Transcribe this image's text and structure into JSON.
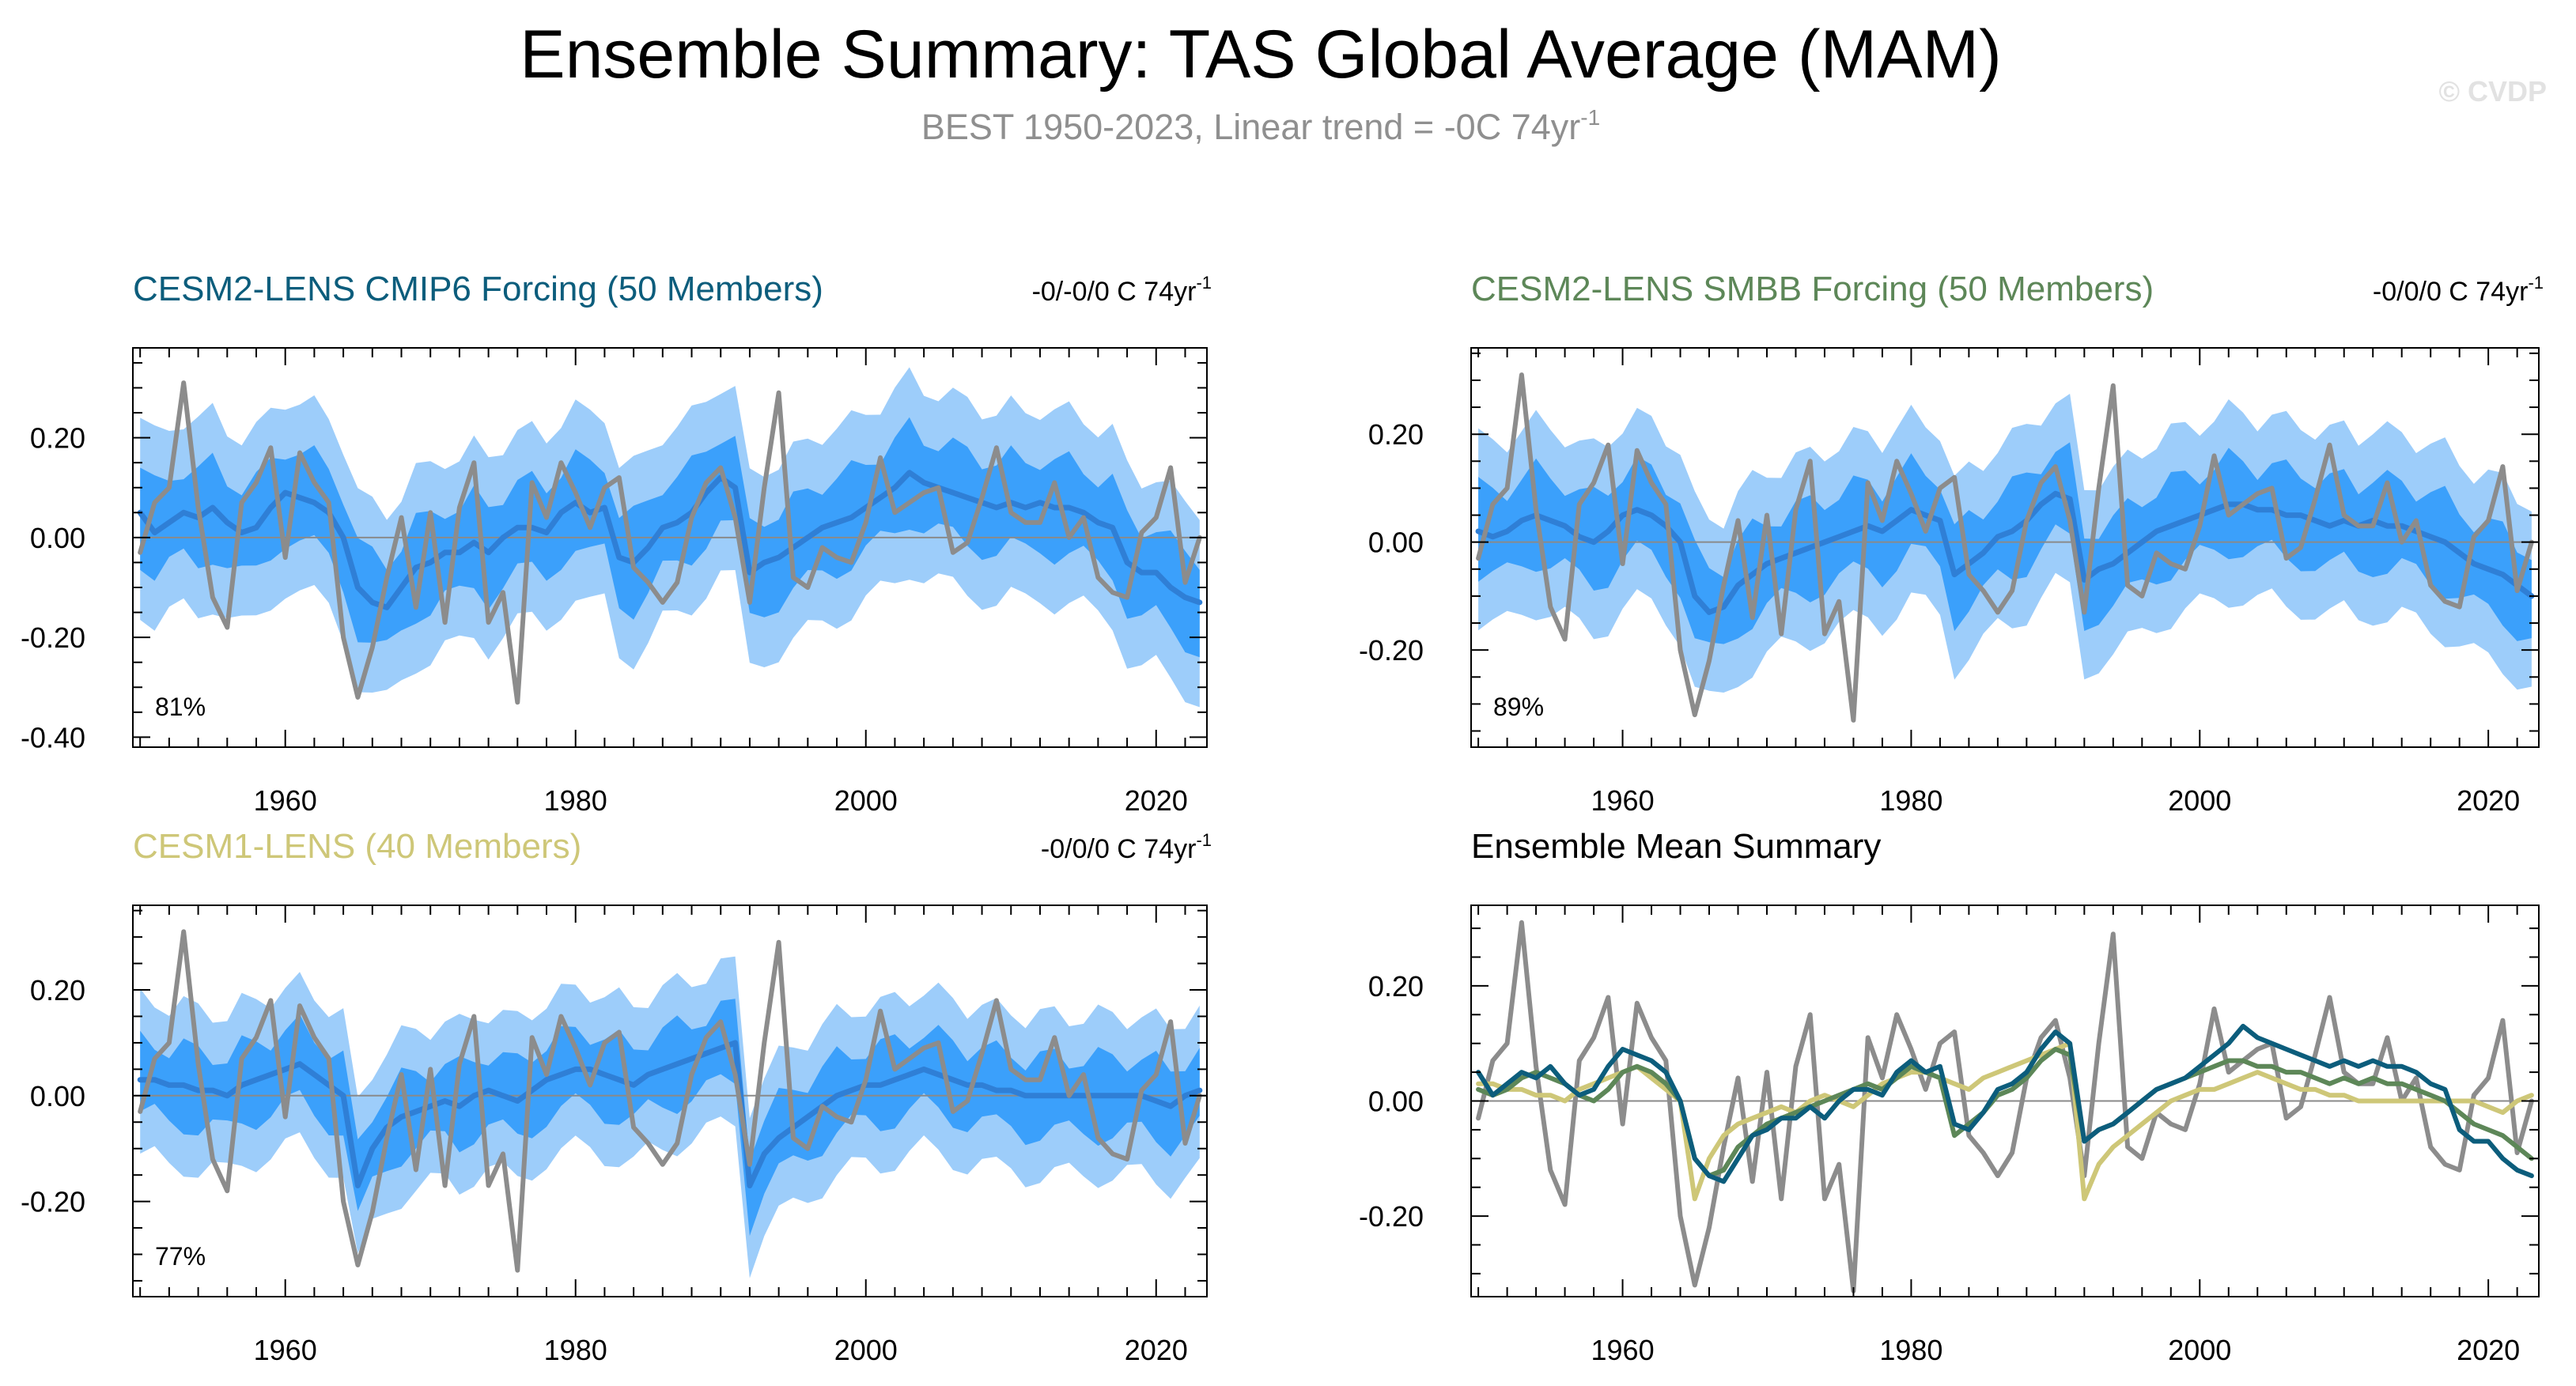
{
  "title": "Ensemble Summary: TAS Global Average (MAM)",
  "subtitle": {
    "text": "BEST 1950-2023, Linear trend = -0C 74yr",
    "sup": "-1"
  },
  "copyright": "© CVDP",
  "colors": {
    "band_outer": "#9dcdfa",
    "band_inner": "#3ba0fb",
    "ens_mean": "#2f7fd6",
    "obs": "#8c8c8c",
    "cesm2_cmip6": "#0c5d7c",
    "cesm2_smbb": "#5d8758",
    "cesm1": "#cec778",
    "zero_line": "#8a8a8a"
  },
  "panels": [
    {
      "id": "cesm2-cmip6",
      "title": "CESM2-LENS CMIP6 Forcing (50 Members)",
      "title_color": "#0c5d7c",
      "trend": "-0/-0/0 C 74yr",
      "trend_sup": "-1",
      "pct": "81%"
    },
    {
      "id": "cesm2-smbb",
      "title": "CESM2-LENS SMBB Forcing (50 Members)",
      "title_color": "#5d8758",
      "trend": "-0/0/0 C 74yr",
      "trend_sup": "-1",
      "pct": "89%"
    },
    {
      "id": "cesm1",
      "title": "CESM1-LENS (40 Members)",
      "title_color": "#cec778",
      "trend": "-0/0/0 C 74yr",
      "trend_sup": "-1",
      "pct": "77%"
    },
    {
      "id": "summary",
      "title": "Ensemble Mean Summary",
      "title_color": "#000000"
    }
  ],
  "chart_data": [
    {
      "type": "line",
      "panel": "cesm2-cmip6",
      "title": "CESM2-LENS CMIP6 Forcing (50 Members)",
      "x_start": 1950,
      "xlim": [
        1949.5,
        2023.5
      ],
      "ylim": [
        -0.42,
        0.38
      ],
      "x_ticks": [
        1960,
        1980,
        2000,
        2020
      ],
      "y_ticks": [
        0.2,
        0.0,
        -0.2,
        -0.4
      ],
      "y_tick_labels": [
        "0.20",
        "0.00",
        "-0.20",
        "-0.40"
      ],
      "bands": {
        "outer_half_width": 0.19,
        "inner_half_width": 0.09
      },
      "series": [
        {
          "name": "Ensemble mean",
          "role": "mean",
          "values": [
            0.05,
            0.01,
            0.03,
            0.05,
            0.04,
            0.06,
            0.03,
            0.01,
            0.02,
            0.06,
            0.09,
            0.08,
            0.07,
            0.05,
            0.0,
            -0.1,
            -0.13,
            -0.14,
            -0.1,
            -0.06,
            -0.05,
            -0.03,
            -0.03,
            -0.01,
            -0.03,
            0.0,
            0.02,
            0.02,
            0.01,
            0.05,
            0.07,
            0.05,
            0.06,
            -0.04,
            -0.05,
            -0.02,
            0.02,
            0.03,
            0.05,
            0.09,
            0.12,
            0.1,
            -0.07,
            -0.05,
            -0.04,
            -0.02,
            0.0,
            0.02,
            0.03,
            0.04,
            0.06,
            0.08,
            0.1,
            0.13,
            0.11,
            0.1,
            0.09,
            0.08,
            0.07,
            0.06,
            0.07,
            0.06,
            0.07,
            0.06,
            0.06,
            0.05,
            0.03,
            0.02,
            -0.05,
            -0.07,
            -0.07,
            -0.1,
            -0.12,
            -0.13
          ]
        },
        {
          "name": "BEST",
          "role": "obs",
          "values": [
            -0.03,
            0.07,
            0.1,
            0.31,
            0.06,
            -0.12,
            -0.18,
            0.07,
            0.11,
            0.18,
            -0.04,
            0.17,
            0.11,
            0.07,
            -0.2,
            -0.32,
            -0.22,
            -0.08,
            0.04,
            -0.14,
            0.05,
            -0.17,
            0.06,
            0.15,
            -0.17,
            -0.11,
            -0.33,
            0.11,
            0.04,
            0.15,
            0.09,
            0.02,
            0.1,
            0.12,
            -0.06,
            -0.09,
            -0.13,
            -0.09,
            0.04,
            0.11,
            0.14,
            0.04,
            -0.13,
            0.1,
            0.29,
            -0.08,
            -0.1,
            -0.02,
            -0.04,
            -0.05,
            0.03,
            0.16,
            0.05,
            0.07,
            0.09,
            0.1,
            -0.03,
            -0.01,
            0.08,
            0.18,
            0.05,
            0.03,
            0.03,
            0.11,
            0.0,
            0.04,
            -0.08,
            -0.11,
            -0.12,
            0.01,
            0.04,
            0.14,
            -0.09,
            0.0
          ]
        }
      ]
    },
    {
      "type": "line",
      "panel": "cesm2-smbb",
      "title": "CESM2-LENS SMBB Forcing (50 Members)",
      "x_start": 1950,
      "xlim": [
        1949.5,
        2023.5
      ],
      "ylim": [
        -0.38,
        0.36
      ],
      "x_ticks": [
        1960,
        1980,
        2000,
        2020
      ],
      "y_ticks": [
        0.2,
        0.0,
        -0.2
      ],
      "y_tick_labels": [
        "0.20",
        "0.00",
        "-0.20"
      ],
      "bands": {
        "outer_half_width": 0.17,
        "inner_half_width": 0.08
      },
      "series": [
        {
          "name": "Ensemble mean",
          "role": "mean",
          "values": [
            0.02,
            0.01,
            0.02,
            0.04,
            0.05,
            0.04,
            0.03,
            0.01,
            0.0,
            0.02,
            0.05,
            0.06,
            0.05,
            0.03,
            0.0,
            -0.1,
            -0.13,
            -0.12,
            -0.08,
            -0.06,
            -0.04,
            -0.03,
            -0.02,
            -0.01,
            0.0,
            0.01,
            0.02,
            0.03,
            0.02,
            0.04,
            0.06,
            0.05,
            0.04,
            -0.06,
            -0.04,
            -0.02,
            0.01,
            0.02,
            0.04,
            0.07,
            0.09,
            0.08,
            -0.07,
            -0.05,
            -0.04,
            -0.02,
            0.0,
            0.02,
            0.03,
            0.04,
            0.05,
            0.06,
            0.07,
            0.07,
            0.06,
            0.06,
            0.05,
            0.05,
            0.04,
            0.03,
            0.04,
            0.03,
            0.04,
            0.03,
            0.03,
            0.02,
            0.01,
            0.0,
            -0.02,
            -0.04,
            -0.05,
            -0.06,
            -0.08,
            -0.1
          ]
        },
        {
          "name": "BEST",
          "role": "obs",
          "values": [
            -0.03,
            0.07,
            0.1,
            0.31,
            0.06,
            -0.12,
            -0.18,
            0.07,
            0.11,
            0.18,
            -0.04,
            0.17,
            0.11,
            0.07,
            -0.2,
            -0.32,
            -0.22,
            -0.08,
            0.04,
            -0.14,
            0.05,
            -0.17,
            0.06,
            0.15,
            -0.17,
            -0.11,
            -0.33,
            0.11,
            0.04,
            0.15,
            0.09,
            0.02,
            0.1,
            0.12,
            -0.06,
            -0.09,
            -0.13,
            -0.09,
            0.04,
            0.11,
            0.14,
            0.04,
            -0.13,
            0.1,
            0.29,
            -0.08,
            -0.1,
            -0.02,
            -0.04,
            -0.05,
            0.03,
            0.16,
            0.05,
            0.07,
            0.09,
            0.1,
            -0.03,
            -0.01,
            0.08,
            0.18,
            0.05,
            0.03,
            0.03,
            0.11,
            0.0,
            0.04,
            -0.08,
            -0.11,
            -0.12,
            0.01,
            0.04,
            0.14,
            -0.09,
            0.0
          ]
        }
      ]
    },
    {
      "type": "line",
      "panel": "cesm1",
      "title": "CESM1-LENS (40 Members)",
      "x_start": 1950,
      "xlim": [
        1949.5,
        2023.5
      ],
      "ylim": [
        -0.38,
        0.36
      ],
      "x_ticks": [
        1960,
        1980,
        2000,
        2020
      ],
      "y_ticks": [
        0.2,
        0.0,
        -0.2
      ],
      "y_tick_labels": [
        "0.20",
        "0.00",
        "-0.20"
      ],
      "bands": {
        "outer_half_width": 0.15,
        "inner_half_width": 0.07
      },
      "series": [
        {
          "name": "Ensemble mean",
          "role": "mean",
          "values": [
            0.03,
            0.03,
            0.02,
            0.02,
            0.01,
            0.01,
            0.0,
            0.02,
            0.03,
            0.04,
            0.05,
            0.06,
            0.04,
            0.02,
            0.0,
            -0.17,
            -0.1,
            -0.06,
            -0.04,
            -0.03,
            -0.02,
            -0.01,
            -0.02,
            0.0,
            0.01,
            0.0,
            -0.01,
            0.01,
            0.03,
            0.04,
            0.05,
            0.05,
            0.04,
            0.03,
            0.02,
            0.04,
            0.05,
            0.06,
            0.07,
            0.08,
            0.09,
            0.1,
            -0.17,
            -0.11,
            -0.08,
            -0.06,
            -0.04,
            -0.02,
            0.0,
            0.01,
            0.02,
            0.02,
            0.03,
            0.04,
            0.05,
            0.04,
            0.03,
            0.02,
            0.02,
            0.01,
            0.01,
            0.0,
            0.0,
            0.0,
            0.0,
            0.0,
            0.0,
            0.0,
            0.0,
            0.0,
            -0.01,
            -0.02,
            0.0,
            0.01
          ]
        },
        {
          "name": "BEST",
          "role": "obs",
          "values": [
            -0.03,
            0.07,
            0.1,
            0.31,
            0.06,
            -0.12,
            -0.18,
            0.07,
            0.11,
            0.18,
            -0.04,
            0.17,
            0.11,
            0.07,
            -0.2,
            -0.32,
            -0.22,
            -0.08,
            0.04,
            -0.14,
            0.05,
            -0.17,
            0.06,
            0.15,
            -0.17,
            -0.11,
            -0.33,
            0.11,
            0.04,
            0.15,
            0.09,
            0.02,
            0.1,
            0.12,
            -0.06,
            -0.09,
            -0.13,
            -0.09,
            0.04,
            0.11,
            0.14,
            0.04,
            -0.13,
            0.1,
            0.29,
            -0.08,
            -0.1,
            -0.02,
            -0.04,
            -0.05,
            0.03,
            0.16,
            0.05,
            0.07,
            0.09,
            0.1,
            -0.03,
            -0.01,
            0.08,
            0.18,
            0.05,
            0.03,
            0.03,
            0.11,
            0.0,
            0.04,
            -0.08,
            -0.11,
            -0.12,
            0.01,
            0.04,
            0.14,
            -0.09,
            0.0
          ]
        }
      ]
    },
    {
      "type": "line",
      "panel": "summary",
      "title": "Ensemble Mean Summary",
      "x_start": 1950,
      "xlim": [
        1949.5,
        2023.5
      ],
      "ylim": [
        -0.34,
        0.34
      ],
      "x_ticks": [
        1960,
        1980,
        2000,
        2020
      ],
      "y_ticks": [
        0.2,
        0.0,
        -0.2
      ],
      "y_tick_labels": [
        "0.20",
        "0.00",
        "-0.20"
      ],
      "series": [
        {
          "name": "BEST",
          "role": "obs",
          "values": [
            -0.03,
            0.07,
            0.1,
            0.31,
            0.06,
            -0.12,
            -0.18,
            0.07,
            0.11,
            0.18,
            -0.04,
            0.17,
            0.11,
            0.07,
            -0.2,
            -0.32,
            -0.22,
            -0.08,
            0.04,
            -0.14,
            0.05,
            -0.17,
            0.06,
            0.15,
            -0.17,
            -0.11,
            -0.33,
            0.11,
            0.04,
            0.15,
            0.09,
            0.02,
            0.1,
            0.12,
            -0.06,
            -0.09,
            -0.13,
            -0.09,
            0.04,
            0.11,
            0.14,
            0.04,
            -0.13,
            0.1,
            0.29,
            -0.08,
            -0.1,
            -0.02,
            -0.04,
            -0.05,
            0.03,
            0.16,
            0.05,
            0.07,
            0.09,
            0.1,
            -0.03,
            -0.01,
            0.08,
            0.18,
            0.05,
            0.03,
            0.03,
            0.11,
            0.0,
            0.04,
            -0.08,
            -0.11,
            -0.12,
            0.01,
            0.04,
            0.14,
            -0.09,
            0.0
          ]
        },
        {
          "name": "CESM1-LENS",
          "role": "cesm1",
          "values": [
            0.03,
            0.03,
            0.02,
            0.02,
            0.01,
            0.01,
            0.0,
            0.02,
            0.03,
            0.04,
            0.05,
            0.06,
            0.04,
            0.02,
            0.0,
            -0.17,
            -0.1,
            -0.06,
            -0.04,
            -0.03,
            -0.02,
            -0.01,
            -0.02,
            0.0,
            0.01,
            0.0,
            -0.01,
            0.01,
            0.03,
            0.04,
            0.05,
            0.05,
            0.04,
            0.03,
            0.02,
            0.04,
            0.05,
            0.06,
            0.07,
            0.08,
            0.09,
            0.1,
            -0.17,
            -0.11,
            -0.08,
            -0.06,
            -0.04,
            -0.02,
            0.0,
            0.01,
            0.02,
            0.02,
            0.03,
            0.04,
            0.05,
            0.04,
            0.03,
            0.02,
            0.02,
            0.01,
            0.01,
            0.0,
            0.0,
            0.0,
            0.0,
            0.0,
            0.0,
            0.0,
            0.0,
            0.0,
            -0.01,
            -0.02,
            0.0,
            0.01
          ]
        },
        {
          "name": "CESM2-LENS SMBB",
          "role": "cesm2_smbb",
          "values": [
            0.02,
            0.01,
            0.02,
            0.04,
            0.05,
            0.04,
            0.03,
            0.01,
            0.0,
            0.02,
            0.05,
            0.06,
            0.05,
            0.03,
            0.0,
            -0.1,
            -0.13,
            -0.12,
            -0.08,
            -0.06,
            -0.04,
            -0.03,
            -0.02,
            -0.01,
            0.0,
            0.01,
            0.02,
            0.03,
            0.02,
            0.04,
            0.06,
            0.05,
            0.04,
            -0.06,
            -0.04,
            -0.02,
            0.01,
            0.02,
            0.04,
            0.07,
            0.09,
            0.08,
            -0.07,
            -0.05,
            -0.04,
            -0.02,
            0.0,
            0.02,
            0.03,
            0.04,
            0.05,
            0.06,
            0.07,
            0.07,
            0.06,
            0.06,
            0.05,
            0.05,
            0.04,
            0.03,
            0.04,
            0.03,
            0.04,
            0.03,
            0.03,
            0.02,
            0.01,
            0.0,
            -0.02,
            -0.04,
            -0.05,
            -0.06,
            -0.08,
            -0.1
          ]
        },
        {
          "name": "CESM2-LENS CMIP6",
          "role": "cesm2_cmip6",
          "values": [
            0.05,
            0.01,
            0.03,
            0.05,
            0.04,
            0.06,
            0.03,
            0.01,
            0.02,
            0.06,
            0.09,
            0.08,
            0.07,
            0.05,
            0.0,
            -0.1,
            -0.13,
            -0.14,
            -0.1,
            -0.06,
            -0.05,
            -0.03,
            -0.03,
            -0.01,
            -0.03,
            0.0,
            0.02,
            0.02,
            0.01,
            0.05,
            0.07,
            0.05,
            0.06,
            -0.04,
            -0.05,
            -0.02,
            0.02,
            0.03,
            0.05,
            0.09,
            0.12,
            0.1,
            -0.07,
            -0.05,
            -0.04,
            -0.02,
            0.0,
            0.02,
            0.03,
            0.04,
            0.06,
            0.08,
            0.1,
            0.13,
            0.11,
            0.1,
            0.09,
            0.08,
            0.07,
            0.06,
            0.07,
            0.06,
            0.07,
            0.06,
            0.06,
            0.05,
            0.03,
            0.02,
            -0.05,
            -0.07,
            -0.07,
            -0.1,
            -0.12,
            -0.13
          ]
        }
      ]
    }
  ]
}
